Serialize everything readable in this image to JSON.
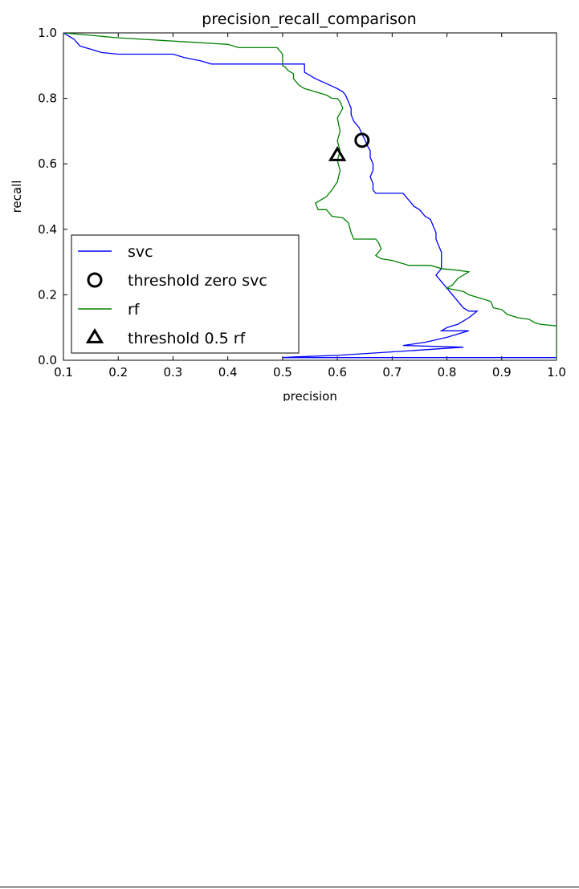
{
  "chart_data": {
    "type": "line",
    "title": "precision_recall_comparison",
    "xlabel": "precision",
    "ylabel": "recall",
    "xlim": [
      0.1,
      1.0
    ],
    "ylim": [
      0.0,
      1.0
    ],
    "xticks": [
      "0.1",
      "0.2",
      "0.3",
      "0.4",
      "0.5",
      "0.6",
      "0.7",
      "0.8",
      "0.9",
      "1.0"
    ],
    "yticks": [
      "0.0",
      "0.2",
      "0.4",
      "0.6",
      "0.8",
      "1.0"
    ],
    "grid": false,
    "legend_position": "lower-left",
    "series": [
      {
        "name": "svc",
        "color": "#0000ff",
        "points": [
          [
            0.1,
            1.0
          ],
          [
            0.11,
            0.99
          ],
          [
            0.12,
            0.98
          ],
          [
            0.13,
            0.96
          ],
          [
            0.14,
            0.955
          ],
          [
            0.16,
            0.945
          ],
          [
            0.17,
            0.94
          ],
          [
            0.2,
            0.935
          ],
          [
            0.3,
            0.935
          ],
          [
            0.32,
            0.925
          ],
          [
            0.35,
            0.915
          ],
          [
            0.37,
            0.905
          ],
          [
            0.45,
            0.905
          ],
          [
            0.48,
            0.905
          ],
          [
            0.5,
            0.905
          ],
          [
            0.54,
            0.905
          ],
          [
            0.54,
            0.88
          ],
          [
            0.56,
            0.86
          ],
          [
            0.58,
            0.845
          ],
          [
            0.6,
            0.83
          ],
          [
            0.61,
            0.82
          ],
          [
            0.615,
            0.81
          ],
          [
            0.62,
            0.79
          ],
          [
            0.625,
            0.77
          ],
          [
            0.625,
            0.75
          ],
          [
            0.63,
            0.73
          ],
          [
            0.64,
            0.71
          ],
          [
            0.645,
            0.69
          ],
          [
            0.65,
            0.675
          ],
          [
            0.655,
            0.655
          ],
          [
            0.66,
            0.64
          ],
          [
            0.66,
            0.62
          ],
          [
            0.665,
            0.6
          ],
          [
            0.665,
            0.58
          ],
          [
            0.66,
            0.56
          ],
          [
            0.665,
            0.54
          ],
          [
            0.665,
            0.52
          ],
          [
            0.67,
            0.51
          ],
          [
            0.72,
            0.51
          ],
          [
            0.73,
            0.49
          ],
          [
            0.74,
            0.47
          ],
          [
            0.75,
            0.46
          ],
          [
            0.76,
            0.44
          ],
          [
            0.77,
            0.43
          ],
          [
            0.775,
            0.41
          ],
          [
            0.78,
            0.39
          ],
          [
            0.78,
            0.37
          ],
          [
            0.79,
            0.33
          ],
          [
            0.79,
            0.3
          ],
          [
            0.79,
            0.28
          ],
          [
            0.78,
            0.26
          ],
          [
            0.79,
            0.24
          ],
          [
            0.8,
            0.22
          ],
          [
            0.81,
            0.2
          ],
          [
            0.82,
            0.18
          ],
          [
            0.83,
            0.16
          ],
          [
            0.84,
            0.15
          ],
          [
            0.855,
            0.15
          ],
          [
            0.84,
            0.13
          ],
          [
            0.82,
            0.11
          ],
          [
            0.8,
            0.1
          ],
          [
            0.79,
            0.09
          ],
          [
            0.84,
            0.09
          ],
          [
            0.8,
            0.07
          ],
          [
            0.76,
            0.055
          ],
          [
            0.72,
            0.045
          ],
          [
            0.83,
            0.04
          ],
          [
            0.74,
            0.03
          ],
          [
            0.6,
            0.015
          ],
          [
            0.52,
            0.01
          ],
          [
            0.5,
            0.008
          ],
          [
            1.0,
            0.008
          ]
        ]
      },
      {
        "name": "threshold zero svc",
        "marker": "circle",
        "color": "#000000",
        "points": [
          [
            0.645,
            0.672
          ]
        ]
      },
      {
        "name": "rf",
        "color": "#008000",
        "points": [
          [
            0.1,
            1.0
          ],
          [
            0.2,
            0.985
          ],
          [
            0.4,
            0.965
          ],
          [
            0.42,
            0.955
          ],
          [
            0.49,
            0.955
          ],
          [
            0.5,
            0.935
          ],
          [
            0.5,
            0.9
          ],
          [
            0.505,
            0.895
          ],
          [
            0.51,
            0.885
          ],
          [
            0.52,
            0.875
          ],
          [
            0.52,
            0.86
          ],
          [
            0.53,
            0.84
          ],
          [
            0.54,
            0.83
          ],
          [
            0.56,
            0.82
          ],
          [
            0.58,
            0.81
          ],
          [
            0.59,
            0.8
          ],
          [
            0.6,
            0.8
          ],
          [
            0.605,
            0.79
          ],
          [
            0.61,
            0.77
          ],
          [
            0.6,
            0.74
          ],
          [
            0.605,
            0.7
          ],
          [
            0.6,
            0.67
          ],
          [
            0.605,
            0.64
          ],
          [
            0.6,
            0.61
          ],
          [
            0.605,
            0.58
          ],
          [
            0.6,
            0.545
          ],
          [
            0.59,
            0.52
          ],
          [
            0.58,
            0.5
          ],
          [
            0.56,
            0.48
          ],
          [
            0.565,
            0.46
          ],
          [
            0.58,
            0.46
          ],
          [
            0.59,
            0.44
          ],
          [
            0.61,
            0.435
          ],
          [
            0.62,
            0.42
          ],
          [
            0.625,
            0.39
          ],
          [
            0.63,
            0.37
          ],
          [
            0.66,
            0.37
          ],
          [
            0.67,
            0.37
          ],
          [
            0.675,
            0.36
          ],
          [
            0.68,
            0.34
          ],
          [
            0.67,
            0.32
          ],
          [
            0.68,
            0.31
          ],
          [
            0.7,
            0.305
          ],
          [
            0.72,
            0.295
          ],
          [
            0.73,
            0.29
          ],
          [
            0.77,
            0.29
          ],
          [
            0.79,
            0.28
          ],
          [
            0.82,
            0.275
          ],
          [
            0.84,
            0.27
          ],
          [
            0.83,
            0.26
          ],
          [
            0.82,
            0.25
          ],
          [
            0.81,
            0.23
          ],
          [
            0.8,
            0.22
          ],
          [
            0.83,
            0.21
          ],
          [
            0.84,
            0.2
          ],
          [
            0.86,
            0.19
          ],
          [
            0.88,
            0.18
          ],
          [
            0.885,
            0.16
          ],
          [
            0.9,
            0.155
          ],
          [
            0.91,
            0.14
          ],
          [
            0.93,
            0.13
          ],
          [
            0.95,
            0.125
          ],
          [
            0.96,
            0.115
          ],
          [
            0.97,
            0.11
          ],
          [
            1.0,
            0.105
          ],
          [
            1.0,
            0.0
          ]
        ]
      },
      {
        "name": "threshold 0.5 rf",
        "marker": "triangle",
        "color": "#000000",
        "points": [
          [
            0.6,
            0.625
          ]
        ]
      }
    ]
  }
}
